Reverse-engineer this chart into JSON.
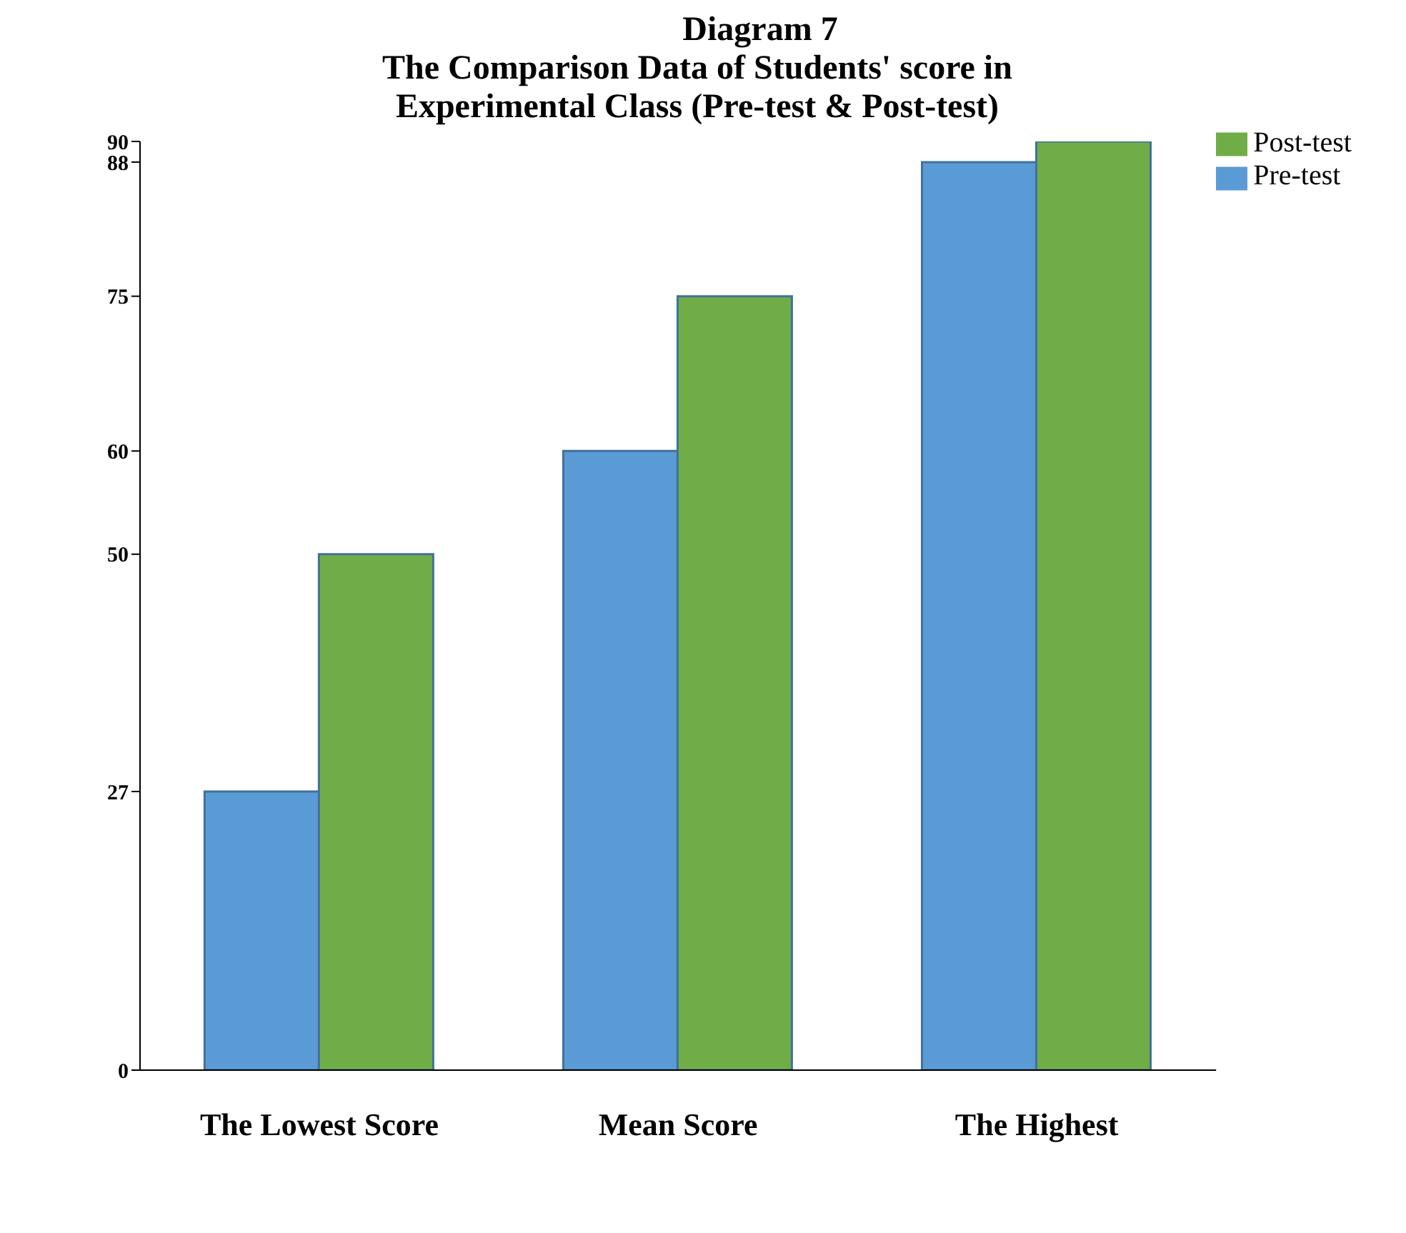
{
  "chart_data": {
    "type": "bar",
    "title": "Diagram 7",
    "subtitle": "The Comparison Data of Students' score in Experimental Class (Pre-test & Post-test)",
    "categories": [
      "The Lowest Score",
      "Mean Score",
      "The Highest"
    ],
    "series": [
      {
        "name": "Pre-test",
        "color": "#5b9bd5",
        "values": [
          27,
          60,
          88
        ]
      },
      {
        "name": "Post-test",
        "color": "#70ad47",
        "values": [
          50,
          75,
          90
        ]
      }
    ],
    "ylim": [
      0,
      90
    ],
    "yticks": [
      0,
      27,
      50,
      60,
      75,
      88,
      90
    ],
    "grid": false,
    "legend": "top right"
  }
}
